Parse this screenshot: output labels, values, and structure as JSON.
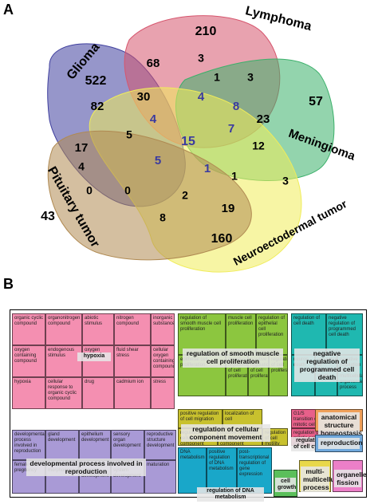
{
  "panel_a": {
    "letter": "A",
    "sets": [
      {
        "name": "Glioma",
        "color": "#3f3f9e"
      },
      {
        "name": "Lymphoma",
        "color": "#d6566e"
      },
      {
        "name": "Meningioma",
        "color": "#3bb06a"
      },
      {
        "name": "Neuroectodermal tumor",
        "color": "#f0ec5a"
      },
      {
        "name": "Pituitary tumor",
        "color": "#b08a52"
      }
    ],
    "counts": [
      {
        "value": "522",
        "color": "#000000"
      },
      {
        "value": "210",
        "color": "#000000"
      },
      {
        "value": "57",
        "color": "#000000"
      },
      {
        "value": "160",
        "color": "#000000"
      },
      {
        "value": "43",
        "color": "#000000"
      },
      {
        "value": "68",
        "color": "#000000"
      },
      {
        "value": "3",
        "color": "#000000"
      },
      {
        "value": "1",
        "color": "#000000"
      },
      {
        "value": "3",
        "color": "#000000"
      },
      {
        "value": "82",
        "color": "#000000"
      },
      {
        "value": "30",
        "color": "#000000"
      },
      {
        "value": "4",
        "color": "#3a3aa0"
      },
      {
        "value": "8",
        "color": "#3a3aa0"
      },
      {
        "value": "23",
        "color": "#000000"
      },
      {
        "value": "4",
        "color": "#3a3aa0"
      },
      {
        "value": "5",
        "color": "#000000"
      },
      {
        "value": "7",
        "color": "#3a3aa0"
      },
      {
        "value": "17",
        "color": "#000000"
      },
      {
        "value": "15",
        "color": "#3a3aa0"
      },
      {
        "value": "12",
        "color": "#000000"
      },
      {
        "value": "4",
        "color": "#000000"
      },
      {
        "value": "5",
        "color": "#3a3aa0"
      },
      {
        "value": "1",
        "color": "#3a3aa0"
      },
      {
        "value": "1",
        "color": "#000000"
      },
      {
        "value": "3",
        "color": "#000000"
      },
      {
        "value": "0",
        "color": "#000000"
      },
      {
        "value": "0",
        "color": "#000000"
      },
      {
        "value": "2",
        "color": "#000000"
      },
      {
        "value": "19",
        "color": "#000000"
      },
      {
        "value": "8",
        "color": "#000000"
      }
    ]
  },
  "panel_b": {
    "letter": "B",
    "groups": [
      {
        "name": "hypoxia",
        "color": "#f48fb1",
        "terms": [
          "organic cyclic compound",
          "organonitrogen compound",
          "abiotic stimulus",
          "nitrogen compound",
          "inorganic substance",
          "oxygen containing compound",
          "endogenous stimulus",
          "oxygen levels",
          "fluid shear stress",
          "cellular oxygen containing compound",
          "hypoxia",
          "cellular response to organic cyclic compound",
          "drug",
          "cadmium ion",
          "stress"
        ]
      },
      {
        "name": "regulation of smooth muscle cell proliferation",
        "color": "#8cc63f",
        "terms": [
          "regulation of smooth muscle cell proliferation",
          "muscle cell proliferation",
          "regulation of epithelial cell proliferation",
          "epithelial cell proliferation",
          "negative regulation of cell proliferation",
          "positive regulation of cell proliferation",
          "regulation of cell proliferation"
        ]
      },
      {
        "name": "negative regulation of programmed cell death",
        "color": "#1fb8b0",
        "terms": [
          "regulation of cell death",
          "negative regulation of programmed cell death",
          "neuron death",
          "regulation of neuron death",
          "negative regulation of multicellular organismal process"
        ]
      },
      {
        "name": "developmental process involved in reproduction",
        "color": "#a99ad6",
        "terms": [
          "developmental process involved in reproduction",
          "gland development",
          "epithelium development",
          "sensory organ development",
          "reproductive structure development",
          "female pregnancy",
          "ureteric bud morphogenesis",
          "circulatory system development",
          "reproductive system development",
          "maturation"
        ]
      },
      {
        "name": "regulation of cellular component movement",
        "color": "#c8c12e",
        "terms": [
          "positive regulation of cell migration",
          "localization of cell",
          "regulation of cellular component movement",
          "positive regulation of cellular component movement",
          "regulation of cell motility"
        ]
      },
      {
        "name": "regulation of DNA metabolism",
        "color": "#19a7c9",
        "terms": [
          "DNA metabolism",
          "positive regulation of DNA metabolism",
          "post-transcriptional regulation of gene expression"
        ]
      },
      {
        "name": "regulation of cell cycle",
        "color": "#e8608a",
        "terms": [
          "G1/S transition of mitotic cell cycle",
          "regulation of cell cycle",
          "regulation of mitotic cell cycle"
        ]
      },
      {
        "name": "anatomical structure homeostasis",
        "color": "#f0a05a",
        "terms": []
      },
      {
        "name": "reproduction",
        "color": "#6fa8dc",
        "terms": []
      },
      {
        "name": "cell growth",
        "color": "#5bbf5b",
        "terms": []
      },
      {
        "name": "multi-multicellular process",
        "color": "#e8d84a",
        "terms": []
      },
      {
        "name": "organelle fission",
        "color": "#ec7fc8",
        "terms": []
      }
    ]
  }
}
